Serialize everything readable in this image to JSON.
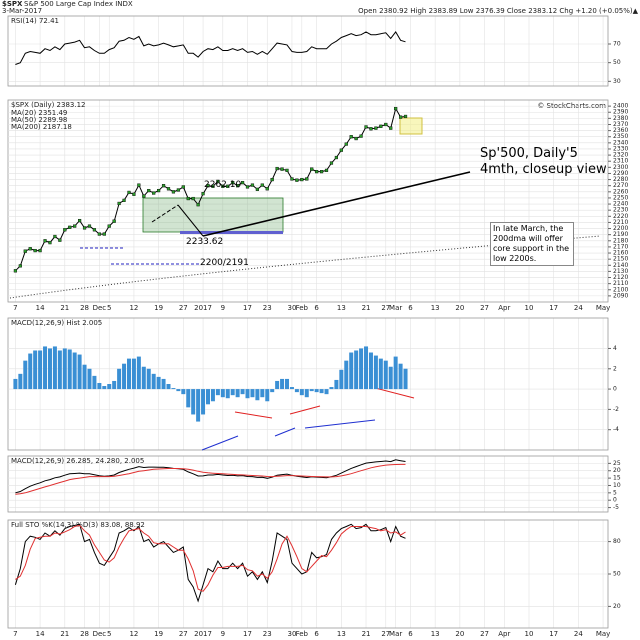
{
  "header": {
    "symbol": "$SPX",
    "name": "S&P 500 Large Cap Index INDX",
    "date": "3-Mar-2017",
    "quote": "Open 2380.92 High 2383.89 Low 2376.39 Close 2383.12 Chg +1.20 (+0.05%)▲",
    "watermark": "© StockCharts.com"
  },
  "chart_data": [
    {
      "type": "line",
      "title": "RSI(14) 72.41",
      "color": "#000000",
      "ylim": [
        25,
        100
      ],
      "yticks": [
        30,
        50,
        70
      ],
      "grid": true,
      "values": [
        48,
        50,
        60,
        62,
        61,
        60,
        65,
        63,
        67,
        64,
        70,
        71,
        72,
        74,
        66,
        67,
        63,
        60,
        60,
        64,
        66,
        73,
        74,
        77,
        75,
        78,
        68,
        70,
        68,
        69,
        71,
        69,
        67,
        68,
        69,
        60,
        60,
        56,
        62,
        65,
        64,
        67,
        63,
        63,
        65,
        63,
        65,
        61,
        62,
        59,
        62,
        59,
        65,
        71,
        70,
        69,
        62,
        61,
        61,
        62,
        67,
        65,
        65,
        65,
        70,
        73,
        77,
        79,
        81,
        79,
        80,
        83,
        80,
        80,
        81,
        82,
        76,
        83,
        74,
        72.41
      ]
    },
    {
      "type": "line",
      "title": "$SPX (Daily) 2383.12",
      "color": "#000000",
      "legend": [
        "MA(20) 2351.49",
        "MA(50) 2289.98",
        "MA(200) 2187.18"
      ],
      "annotations": [
        "2262.10",
        "2233.62",
        "2200/2191",
        "Sp'500, Daily'5",
        "4mth, closeup view",
        "In late March, the 200dma will offer core support in the low 2200s."
      ],
      "xlim": [
        -1.5,
        120
      ],
      "xticks": [
        {
          "value": 0,
          "label": "7"
        },
        {
          "value": 5,
          "label": "14"
        },
        {
          "value": 10,
          "label": "21"
        },
        {
          "value": 14,
          "label": "28"
        },
        {
          "value": 17,
          "label": "Dec"
        },
        {
          "value": 19,
          "label": "5"
        },
        {
          "value": 24,
          "label": "12"
        },
        {
          "value": 29,
          "label": "19"
        },
        {
          "value": 34,
          "label": "27"
        },
        {
          "value": 38,
          "label": "2017"
        },
        {
          "value": 42,
          "label": "9"
        },
        {
          "value": 47,
          "label": "17"
        },
        {
          "value": 51,
          "label": "23"
        },
        {
          "value": 56,
          "label": "30"
        },
        {
          "value": 58,
          "label": "Feb"
        },
        {
          "value": 61,
          "label": "6"
        },
        {
          "value": 66,
          "label": "13"
        },
        {
          "value": 71,
          "label": "21"
        },
        {
          "value": 75,
          "label": "27"
        },
        {
          "value": 77,
          "label": "Mar"
        },
        {
          "value": 80,
          "label": "6"
        },
        {
          "value": 85,
          "label": "13"
        },
        {
          "value": 90,
          "label": "20"
        },
        {
          "value": 95,
          "label": "27"
        },
        {
          "value": 99,
          "label": "Apr"
        },
        {
          "value": 104,
          "label": "10"
        },
        {
          "value": 109,
          "label": "17"
        },
        {
          "value": 114,
          "label": "24"
        },
        {
          "value": 119,
          "label": "May"
        }
      ],
      "ylim": [
        2080,
        2410
      ],
      "yticks": [
        2090,
        2100,
        2110,
        2120,
        2130,
        2140,
        2150,
        2160,
        2170,
        2180,
        2190,
        2200,
        2210,
        2220,
        2230,
        2240,
        2250,
        2260,
        2270,
        2280,
        2290,
        2300,
        2310,
        2320,
        2330,
        2340,
        2350,
        2360,
        2370,
        2380,
        2390,
        2400
      ],
      "grid": true,
      "values": [
        2131,
        2139,
        2163,
        2167,
        2164,
        2164,
        2180,
        2177,
        2187,
        2181,
        2198,
        2202,
        2204,
        2213,
        2201,
        2204,
        2198,
        2191,
        2191,
        2204,
        2212,
        2241,
        2246,
        2259,
        2256,
        2271,
        2253,
        2262,
        2258,
        2262,
        2270,
        2265,
        2260,
        2263,
        2268,
        2249,
        2249,
        2239,
        2257,
        2270,
        2269,
        2277,
        2269,
        2269,
        2275,
        2270,
        2275,
        2268,
        2271,
        2264,
        2271,
        2265,
        2280,
        2298,
        2297,
        2295,
        2281,
        2279,
        2280,
        2281,
        2297,
        2293,
        2293,
        2295,
        2307,
        2316,
        2328,
        2338,
        2350,
        2347,
        2351,
        2366,
        2363,
        2364,
        2367,
        2370,
        2364,
        2396,
        2382,
        2383.12
      ]
    },
    {
      "type": "bar",
      "title": "MACD(12,26,9) Hist 2.005",
      "color": "#3a8fd4",
      "ylim": [
        -6,
        7
      ],
      "yticks": [
        -4,
        -2,
        0,
        2,
        4
      ],
      "grid": true,
      "values": [
        1.0,
        1.5,
        2.8,
        3.5,
        3.8,
        3.8,
        4.2,
        4.0,
        4.2,
        3.8,
        4.0,
        3.9,
        3.6,
        3.4,
        2.4,
        2.0,
        1.3,
        0.6,
        0.3,
        0.5,
        0.8,
        2.0,
        2.5,
        3.0,
        3.0,
        3.2,
        2.2,
        2.0,
        1.5,
        1.2,
        1.0,
        0.5,
        0.1,
        -0.2,
        -0.5,
        -1.8,
        -2.5,
        -3.2,
        -2.5,
        -1.5,
        -1.2,
        -0.6,
        -0.8,
        -0.9,
        -0.6,
        -0.8,
        -0.5,
        -0.9,
        -0.8,
        -1.1,
        -0.8,
        -1.2,
        -0.3,
        0.8,
        1.0,
        1.0,
        0.2,
        -0.3,
        -0.6,
        -0.8,
        -0.2,
        -0.3,
        -0.4,
        -0.5,
        0.2,
        0.9,
        1.9,
        2.8,
        3.6,
        3.8,
        4.0,
        4.2,
        3.6,
        3.3,
        3.0,
        2.8,
        2.2,
        3.2,
        2.5,
        2.005
      ]
    },
    {
      "type": "line",
      "title": "MACD(12,26,9) 26.285, 24.280, 2.005",
      "ylim": [
        -8,
        30
      ],
      "yticks": [
        -5,
        0,
        5,
        10,
        15,
        20,
        25
      ],
      "grid": true,
      "series": [
        {
          "color": "#000000",
          "values": [
            5,
            5.9,
            7.8,
            9.5,
            10.8,
            11.8,
            13.2,
            14,
            15.2,
            15.8,
            17,
            17.9,
            18.1,
            18.4,
            17.9,
            18,
            17.3,
            16.6,
            16.3,
            16.5,
            17.1,
            18.8,
            19.9,
            21,
            21.8,
            22.8,
            22.2,
            22.5,
            22.5,
            22.4,
            22.4,
            22,
            21.6,
            21.3,
            20.9,
            19.2,
            17.9,
            16.4,
            16.5,
            17.1,
            17.1,
            17.5,
            17.1,
            16.8,
            16.9,
            16.5,
            16.7,
            16.1,
            16,
            15.5,
            15.6,
            14.9,
            15.7,
            17,
            17.4,
            17.7,
            16.9,
            16.3,
            15.8,
            15.4,
            15.9,
            15.7,
            15.5,
            15.3,
            16,
            16.9,
            18.4,
            20,
            21.6,
            22.8,
            24,
            25.2,
            25.6,
            26,
            26.3,
            26.6,
            26.2,
            27.4,
            26.8,
            26.285
          ]
        },
        {
          "color": "#e03030",
          "values": [
            4,
            4.4,
            5,
            6,
            7,
            8,
            9,
            10,
            11,
            12,
            13,
            14,
            14.5,
            15,
            15.5,
            16,
            16,
            16,
            16,
            16,
            16.3,
            16.8,
            17.4,
            18,
            18.8,
            19.6,
            20,
            20.5,
            21,
            21.2,
            21.4,
            21.5,
            21.5,
            21.5,
            21.4,
            21,
            20.4,
            19.6,
            19,
            18.6,
            18.3,
            18.1,
            17.9,
            17.7,
            17.5,
            17.3,
            17.2,
            17,
            16.8,
            16.6,
            16.4,
            16.1,
            16,
            16.2,
            16.4,
            16.7,
            16.7,
            16.6,
            16.4,
            16.2,
            16.1,
            16,
            15.9,
            15.8,
            15.8,
            16,
            16.5,
            17.2,
            18,
            19,
            20,
            21,
            22,
            22.7,
            23.3,
            23.8,
            24,
            24.2,
            24.3,
            24.28
          ]
        }
      ]
    },
    {
      "type": "line",
      "title": "Full STO %K(14,3) %D(3) 83.08, 88.92",
      "ylim": [
        0,
        100
      ],
      "yticks": [
        20,
        50,
        80
      ],
      "grid": true,
      "series": [
        {
          "color": "#000000",
          "values": [
            40,
            55,
            80,
            85,
            84,
            82,
            88,
            85,
            90,
            86,
            92,
            94,
            95,
            96,
            80,
            82,
            70,
            60,
            58,
            65,
            72,
            88,
            90,
            93,
            90,
            94,
            80,
            82,
            75,
            78,
            80,
            75,
            70,
            72,
            75,
            45,
            38,
            25,
            40,
            55,
            52,
            62,
            55,
            55,
            60,
            55,
            60,
            48,
            52,
            45,
            52,
            42,
            62,
            88,
            85,
            82,
            60,
            55,
            50,
            52,
            70,
            65,
            66,
            68,
            82,
            88,
            92,
            94,
            96,
            92,
            93,
            96,
            90,
            90,
            91,
            93,
            80,
            94,
            85,
            83.08
          ]
        },
        {
          "color": "#e03030",
          "values": [
            45,
            48,
            58,
            73,
            83,
            84,
            85,
            85,
            88,
            87,
            89,
            91,
            94,
            95,
            90,
            86,
            77,
            70,
            63,
            61,
            65,
            75,
            83,
            90,
            91,
            92,
            88,
            85,
            79,
            78,
            78,
            78,
            75,
            72,
            72,
            64,
            53,
            36,
            34,
            40,
            49,
            56,
            56,
            57,
            57,
            57,
            58,
            54,
            53,
            48,
            50,
            46,
            52,
            64,
            78,
            85,
            76,
            66,
            55,
            52,
            57,
            62,
            67,
            66,
            72,
            79,
            87,
            91,
            94,
            94,
            94,
            94,
            93,
            92,
            90,
            91,
            88,
            89,
            86,
            88.92
          ]
        }
      ]
    }
  ]
}
